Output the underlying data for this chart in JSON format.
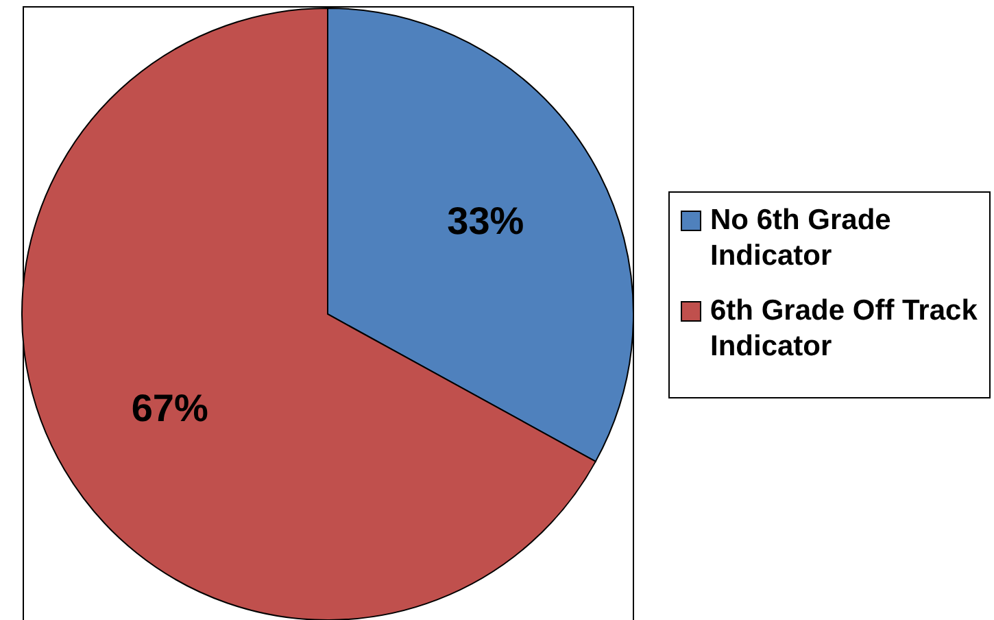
{
  "chart_data": {
    "type": "pie",
    "categories": [
      "No 6th Grade Indicator",
      "6th Grade Off Track Indicator"
    ],
    "values": [
      33,
      67
    ],
    "colors": [
      "#4f81bd",
      "#c0504d"
    ],
    "value_labels": [
      "33%",
      "67%"
    ],
    "legend": "right"
  }
}
